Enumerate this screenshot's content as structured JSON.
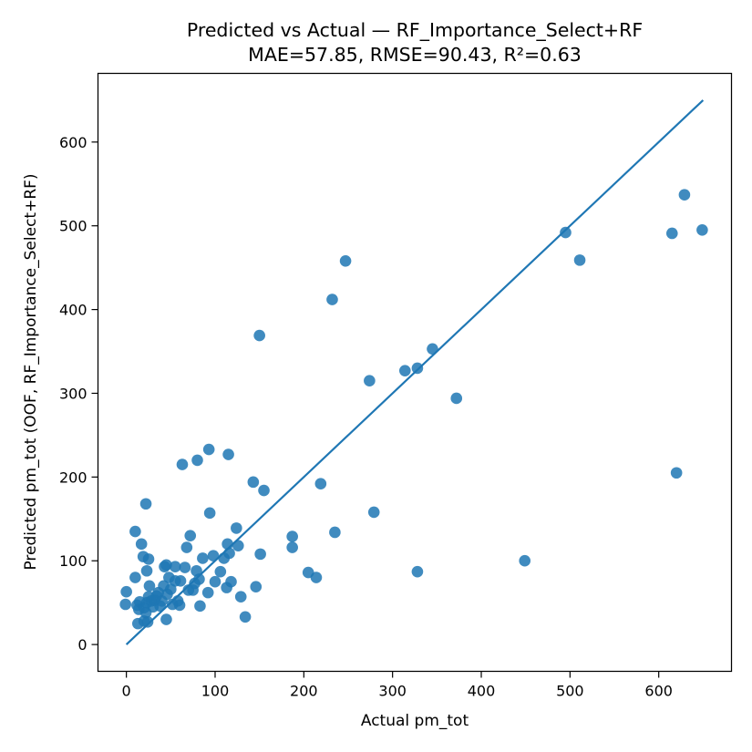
{
  "chart_data": {
    "type": "scatter",
    "title": "Predicted vs Actual — RF_Importance_Select+RF",
    "subtitle": "MAE=57.85, RMSE=90.43, R²=0.63",
    "xlabel": "Actual pm_tot",
    "ylabel": "Predicted pm_tot (OOF, RF_Importance_Select+RF)",
    "xlim": [
      -32,
      682
    ],
    "ylim": [
      -32,
      682
    ],
    "xticks": [
      0,
      100,
      200,
      300,
      400,
      500,
      600
    ],
    "yticks": [
      0,
      100,
      200,
      300,
      400,
      500,
      600
    ],
    "grid": false,
    "colors": {
      "points": "#1f77b4",
      "line": "#1f77b4"
    },
    "reference_line": {
      "from": [
        0,
        0
      ],
      "to": [
        650,
        650
      ]
    },
    "points": [
      {
        "x": 0,
        "y": 63
      },
      {
        "x": -1,
        "y": 48
      },
      {
        "x": 10,
        "y": 135
      },
      {
        "x": 10,
        "y": 80
      },
      {
        "x": 12,
        "y": 47
      },
      {
        "x": 13,
        "y": 25
      },
      {
        "x": 14,
        "y": 42
      },
      {
        "x": 15,
        "y": 51
      },
      {
        "x": 17,
        "y": 120
      },
      {
        "x": 19,
        "y": 105
      },
      {
        "x": 20,
        "y": 44
      },
      {
        "x": 20,
        "y": 28
      },
      {
        "x": 22,
        "y": 38
      },
      {
        "x": 23,
        "y": 50
      },
      {
        "x": 22,
        "y": 168
      },
      {
        "x": 23,
        "y": 88
      },
      {
        "x": 25,
        "y": 102
      },
      {
        "x": 24,
        "y": 27
      },
      {
        "x": 25,
        "y": 57
      },
      {
        "x": 26,
        "y": 70
      },
      {
        "x": 28,
        "y": 52
      },
      {
        "x": 30,
        "y": 45
      },
      {
        "x": 32,
        "y": 53
      },
      {
        "x": 34,
        "y": 58
      },
      {
        "x": 36,
        "y": 62
      },
      {
        "x": 38,
        "y": 46
      },
      {
        "x": 40,
        "y": 52
      },
      {
        "x": 42,
        "y": 70
      },
      {
        "x": 43,
        "y": 93
      },
      {
        "x": 45,
        "y": 95
      },
      {
        "x": 45,
        "y": 30
      },
      {
        "x": 46,
        "y": 60
      },
      {
        "x": 48,
        "y": 80
      },
      {
        "x": 50,
        "y": 66
      },
      {
        "x": 52,
        "y": 48
      },
      {
        "x": 55,
        "y": 93
      },
      {
        "x": 55,
        "y": 76
      },
      {
        "x": 58,
        "y": 52
      },
      {
        "x": 60,
        "y": 47
      },
      {
        "x": 61,
        "y": 76
      },
      {
        "x": 63,
        "y": 215
      },
      {
        "x": 66,
        "y": 92
      },
      {
        "x": 68,
        "y": 116
      },
      {
        "x": 70,
        "y": 65
      },
      {
        "x": 72,
        "y": 130
      },
      {
        "x": 75,
        "y": 65
      },
      {
        "x": 77,
        "y": 73
      },
      {
        "x": 79,
        "y": 88
      },
      {
        "x": 80,
        "y": 220
      },
      {
        "x": 82,
        "y": 78
      },
      {
        "x": 83,
        "y": 46
      },
      {
        "x": 86,
        "y": 103
      },
      {
        "x": 92,
        "y": 62
      },
      {
        "x": 93,
        "y": 233
      },
      {
        "x": 94,
        "y": 157
      },
      {
        "x": 98,
        "y": 106
      },
      {
        "x": 100,
        "y": 75
      },
      {
        "x": 106,
        "y": 87
      },
      {
        "x": 110,
        "y": 103
      },
      {
        "x": 113,
        "y": 68
      },
      {
        "x": 114,
        "y": 120
      },
      {
        "x": 115,
        "y": 227
      },
      {
        "x": 116,
        "y": 109
      },
      {
        "x": 118,
        "y": 75
      },
      {
        "x": 124,
        "y": 139
      },
      {
        "x": 126,
        "y": 118
      },
      {
        "x": 129,
        "y": 57
      },
      {
        "x": 134,
        "y": 33
      },
      {
        "x": 143,
        "y": 194
      },
      {
        "x": 146,
        "y": 69
      },
      {
        "x": 150,
        "y": 369
      },
      {
        "x": 151,
        "y": 108
      },
      {
        "x": 155,
        "y": 184
      },
      {
        "x": 187,
        "y": 129
      },
      {
        "x": 187,
        "y": 116
      },
      {
        "x": 205,
        "y": 86
      },
      {
        "x": 214,
        "y": 80
      },
      {
        "x": 219,
        "y": 192
      },
      {
        "x": 232,
        "y": 412
      },
      {
        "x": 235,
        "y": 134
      },
      {
        "x": 247,
        "y": 458
      },
      {
        "x": 274,
        "y": 315
      },
      {
        "x": 279,
        "y": 158
      },
      {
        "x": 314,
        "y": 327
      },
      {
        "x": 328,
        "y": 330
      },
      {
        "x": 328,
        "y": 87
      },
      {
        "x": 345,
        "y": 353
      },
      {
        "x": 372,
        "y": 294
      },
      {
        "x": 449,
        "y": 100
      },
      {
        "x": 495,
        "y": 492
      },
      {
        "x": 511,
        "y": 459
      },
      {
        "x": 615,
        "y": 491
      },
      {
        "x": 620,
        "y": 205
      },
      {
        "x": 629,
        "y": 537
      },
      {
        "x": 649,
        "y": 495
      }
    ]
  }
}
